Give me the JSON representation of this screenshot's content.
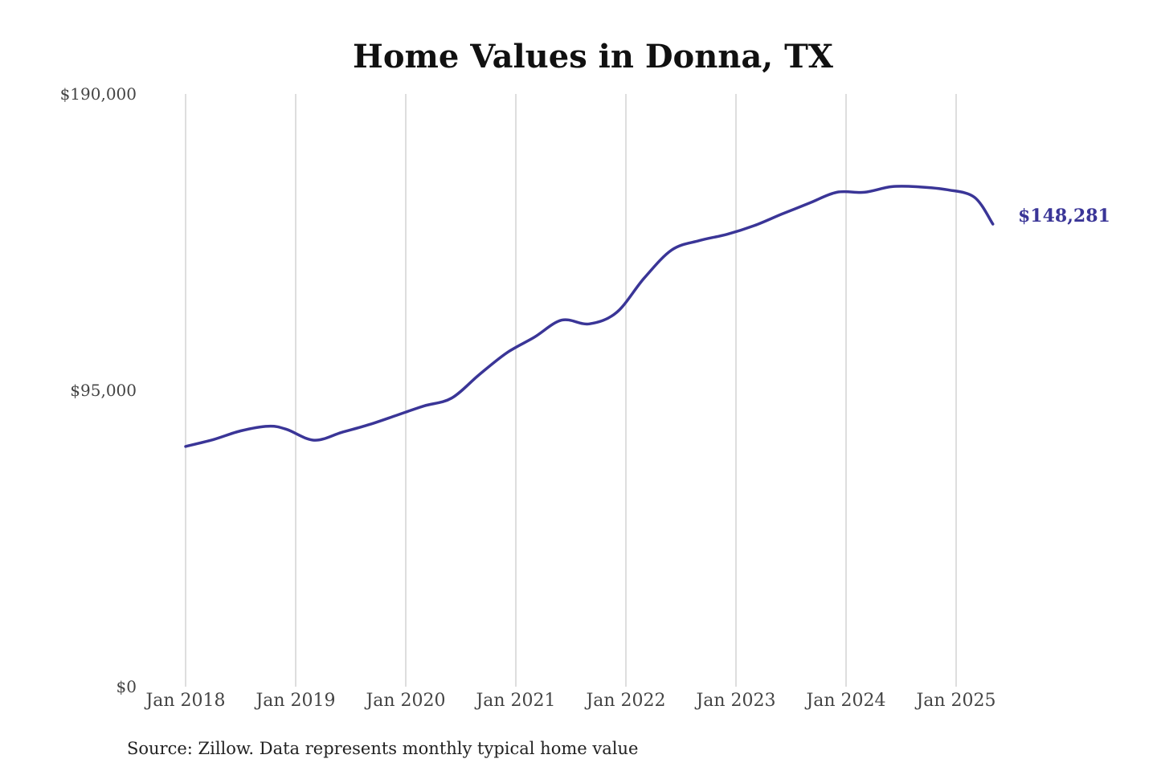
{
  "chart_data": {
    "type": "line",
    "title": "Home Values in Donna, TX",
    "source": "Source: Zillow. Data represents monthly typical home value",
    "y_ticks": [
      "$0",
      "$95,000",
      "$190,000"
    ],
    "y_tick_values": [
      0,
      95000,
      190000
    ],
    "ylim": [
      0,
      190000
    ],
    "x_ticks": [
      "Jan 2018",
      "Jan 2019",
      "Jan 2020",
      "Jan 2021",
      "Jan 2022",
      "Jan 2023",
      "Jan 2024",
      "Jan 2025"
    ],
    "grid": "vertical",
    "line_color": "#3a3597",
    "end_label": "$148,281",
    "series": [
      {
        "x": [
          "2018-01",
          "2018-04",
          "2018-07",
          "2018-10",
          "2018-12",
          "2019-03",
          "2019-06",
          "2019-09",
          "2019-12",
          "2020-03",
          "2020-06",
          "2020-09",
          "2020-12",
          "2021-03",
          "2021-06",
          "2021-09",
          "2021-12",
          "2022-03",
          "2022-06",
          "2022-09",
          "2022-12",
          "2023-03",
          "2023-06",
          "2023-09",
          "2023-12",
          "2024-03",
          "2024-06",
          "2024-09",
          "2024-12",
          "2025-03",
          "2025-05"
        ],
        "values": [
          77000,
          79200,
          82000,
          83500,
          82500,
          79000,
          81500,
          84000,
          87000,
          90000,
          92500,
          100000,
          107000,
          112000,
          117500,
          116300,
          120000,
          131000,
          140000,
          143000,
          145000,
          147800,
          151500,
          155000,
          158500,
          158500,
          160300,
          160200,
          159300,
          156900,
          148281
        ]
      }
    ]
  }
}
